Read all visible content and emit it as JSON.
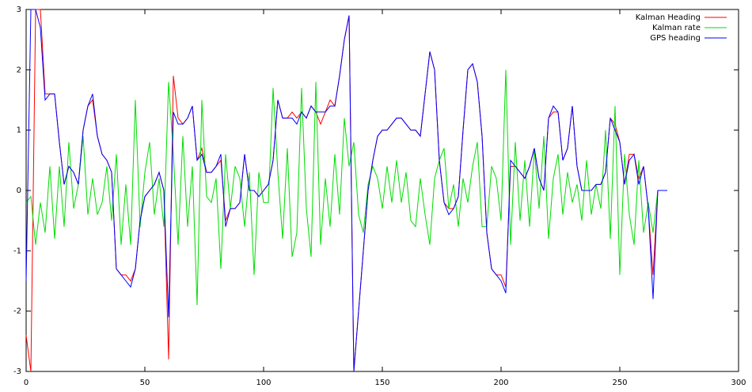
{
  "chart_data": {
    "type": "line",
    "x": [
      0,
      2,
      4,
      6,
      8,
      10,
      12,
      14,
      16,
      18,
      20,
      22,
      24,
      26,
      28,
      30,
      32,
      34,
      36,
      38,
      40,
      42,
      44,
      46,
      48,
      50,
      52,
      54,
      56,
      58,
      60,
      62,
      64,
      66,
      68,
      70,
      72,
      74,
      76,
      78,
      80,
      82,
      84,
      86,
      88,
      90,
      92,
      94,
      96,
      98,
      100,
      102,
      104,
      106,
      108,
      110,
      112,
      114,
      116,
      118,
      120,
      122,
      124,
      126,
      128,
      130,
      132,
      134,
      136,
      138,
      140,
      142,
      144,
      146,
      148,
      150,
      152,
      154,
      156,
      158,
      160,
      162,
      164,
      166,
      168,
      170,
      172,
      174,
      176,
      178,
      180,
      182,
      184,
      186,
      188,
      190,
      192,
      194,
      196,
      198,
      200,
      202,
      204,
      206,
      208,
      210,
      212,
      214,
      216,
      218,
      220,
      222,
      224,
      226,
      228,
      230,
      232,
      234,
      236,
      238,
      240,
      242,
      244,
      246,
      248,
      250,
      252,
      254,
      256,
      258,
      260,
      262,
      264,
      266,
      268,
      270
    ],
    "series": [
      {
        "name": "Kalman Heading",
        "color": "#ff0000",
        "values": [
          -2.4,
          -3,
          3,
          3,
          1.6,
          1.6,
          1.6,
          0.8,
          0.1,
          0.4,
          0.3,
          0.1,
          1.0,
          1.4,
          1.5,
          0.9,
          0.6,
          0.5,
          0.3,
          -1.3,
          -1.4,
          -1.4,
          -1.5,
          -1.3,
          -0.5,
          -0.1,
          0,
          0.1,
          0.3,
          0,
          -2.8,
          1.9,
          1.2,
          1.1,
          1.2,
          1.4,
          0.5,
          0.7,
          0.3,
          0.3,
          0.4,
          0.5,
          -0.5,
          -0.3,
          -0.3,
          -0.2,
          0.6,
          0,
          0,
          -0.1,
          0,
          0.1,
          0.5,
          1.5,
          1.2,
          1.2,
          1.3,
          1.2,
          1.3,
          1.2,
          1.4,
          1.3,
          1.1,
          1.3,
          1.5,
          1.4,
          1.9,
          2.5,
          2.9,
          -3,
          -2.0,
          -1.0,
          0,
          0.5,
          0.9,
          1.0,
          1.0,
          1.1,
          1.2,
          1.2,
          1.1,
          1.0,
          1.0,
          0.9,
          1.6,
          2.3,
          2.0,
          0.5,
          -0.2,
          -0.3,
          -0.3,
          -0.1,
          1.0,
          2.0,
          2.1,
          1.8,
          0.9,
          -0.7,
          -1.3,
          -1.4,
          -1.4,
          -1.6,
          0.4,
          0.4,
          0.3,
          0.2,
          0.4,
          0.7,
          0.2,
          0,
          1.2,
          1.3,
          1.3,
          0.5,
          0.7,
          1.4,
          0.4,
          0,
          0,
          0,
          0.1,
          0.1,
          0.3,
          1.2,
          1.1,
          0.8,
          0.1,
          0.6,
          0.6,
          0.2,
          0.4,
          -0.3,
          -1.4,
          0,
          0,
          0
        ]
      },
      {
        "name": "Kalman rate",
        "color": "#00dd00",
        "values": [
          -0.2,
          -0.1,
          -0.9,
          -0.2,
          -0.7,
          0.4,
          -0.8,
          0.4,
          -0.6,
          0.8,
          -0.3,
          0.1,
          0.9,
          -0.4,
          0.2,
          -0.4,
          -0.2,
          0.4,
          -0.5,
          0.6,
          -0.9,
          0.1,
          -0.9,
          1.5,
          -0.6,
          0.3,
          0.8,
          -0.4,
          0.2,
          -0.6,
          1.8,
          0.6,
          -0.9,
          0.9,
          -0.6,
          0.4,
          -1.9,
          1.5,
          -0.1,
          -0.2,
          0.2,
          -1.3,
          0.6,
          -0.3,
          0.4,
          0.2,
          -0.6,
          0.3,
          -1.4,
          0.3,
          -0.2,
          -0.2,
          1.7,
          0.3,
          -0.8,
          0.7,
          -1.1,
          -0.7,
          1.7,
          -0.3,
          -1.1,
          1.8,
          -0.9,
          0.2,
          -0.6,
          0.6,
          -0.4,
          1.2,
          0.4,
          0.8,
          -0.4,
          -0.7,
          0.1,
          0.4,
          0.2,
          -0.3,
          0.4,
          -0.2,
          0.5,
          -0.2,
          0.3,
          -0.5,
          -0.6,
          0.2,
          -0.4,
          -0.9,
          0.2,
          0.5,
          0.7,
          -0.3,
          0.1,
          -0.6,
          0.2,
          -0.2,
          0.4,
          0.8,
          -0.6,
          -0.6,
          0.4,
          0.2,
          -0.5,
          2.0,
          -0.9,
          0.8,
          -0.5,
          0.5,
          -0.6,
          0.7,
          -0.3,
          0.9,
          -0.8,
          0.2,
          0.6,
          -0.4,
          0.3,
          -0.2,
          0.1,
          -0.5,
          0.5,
          -0.4,
          0.1,
          -0.3,
          1.0,
          -0.8,
          1.4,
          -1.4,
          0.6,
          -0.4,
          -0.9,
          0.5,
          -0.7,
          -0.2,
          -0.7,
          0,
          0,
          0
        ]
      },
      {
        "name": "GPS heading",
        "color": "#0000ff",
        "values": [
          -1.5,
          3,
          3,
          2.7,
          1.5,
          1.6,
          1.6,
          0.8,
          0.1,
          0.4,
          0.3,
          0.1,
          1.0,
          1.4,
          1.6,
          0.9,
          0.6,
          0.5,
          0.3,
          -1.3,
          -1.4,
          -1.5,
          -1.6,
          -1.3,
          -0.5,
          -0.1,
          0,
          0.1,
          0.3,
          0,
          -2.1,
          1.3,
          1.1,
          1.1,
          1.2,
          1.4,
          0.5,
          0.6,
          0.3,
          0.3,
          0.4,
          0.6,
          -0.6,
          -0.3,
          -0.3,
          -0.2,
          0.6,
          0,
          0,
          -0.1,
          0,
          0.1,
          0.5,
          1.5,
          1.2,
          1.2,
          1.2,
          1.1,
          1.3,
          1.2,
          1.4,
          1.3,
          1.3,
          1.3,
          1.4,
          1.4,
          1.9,
          2.5,
          2.9,
          -3,
          -2.0,
          -1.0,
          0,
          0.5,
          0.9,
          1.0,
          1.0,
          1.1,
          1.2,
          1.2,
          1.1,
          1.0,
          1.0,
          0.9,
          1.6,
          2.3,
          2.0,
          0.5,
          -0.2,
          -0.4,
          -0.3,
          -0.1,
          1.0,
          2.0,
          2.1,
          1.8,
          0.9,
          -0.7,
          -1.3,
          -1.4,
          -1.5,
          -1.7,
          0.5,
          0.4,
          0.3,
          0.2,
          0.4,
          0.7,
          0.2,
          0,
          1.2,
          1.4,
          1.3,
          0.5,
          0.7,
          1.4,
          0.4,
          0,
          0,
          0,
          0.1,
          0.1,
          0.3,
          1.2,
          1.0,
          0.8,
          0.1,
          0.5,
          0.6,
          0.1,
          0.4,
          -0.3,
          -1.8,
          0,
          0,
          0
        ]
      }
    ],
    "xlim": [
      0,
      300
    ],
    "xticks": [
      0,
      50,
      100,
      150,
      200,
      250,
      300
    ],
    "ylim": [
      -3,
      3
    ],
    "yticks": [
      -3,
      -2,
      -1,
      0,
      1,
      2,
      3
    ],
    "legend": "top-right"
  }
}
